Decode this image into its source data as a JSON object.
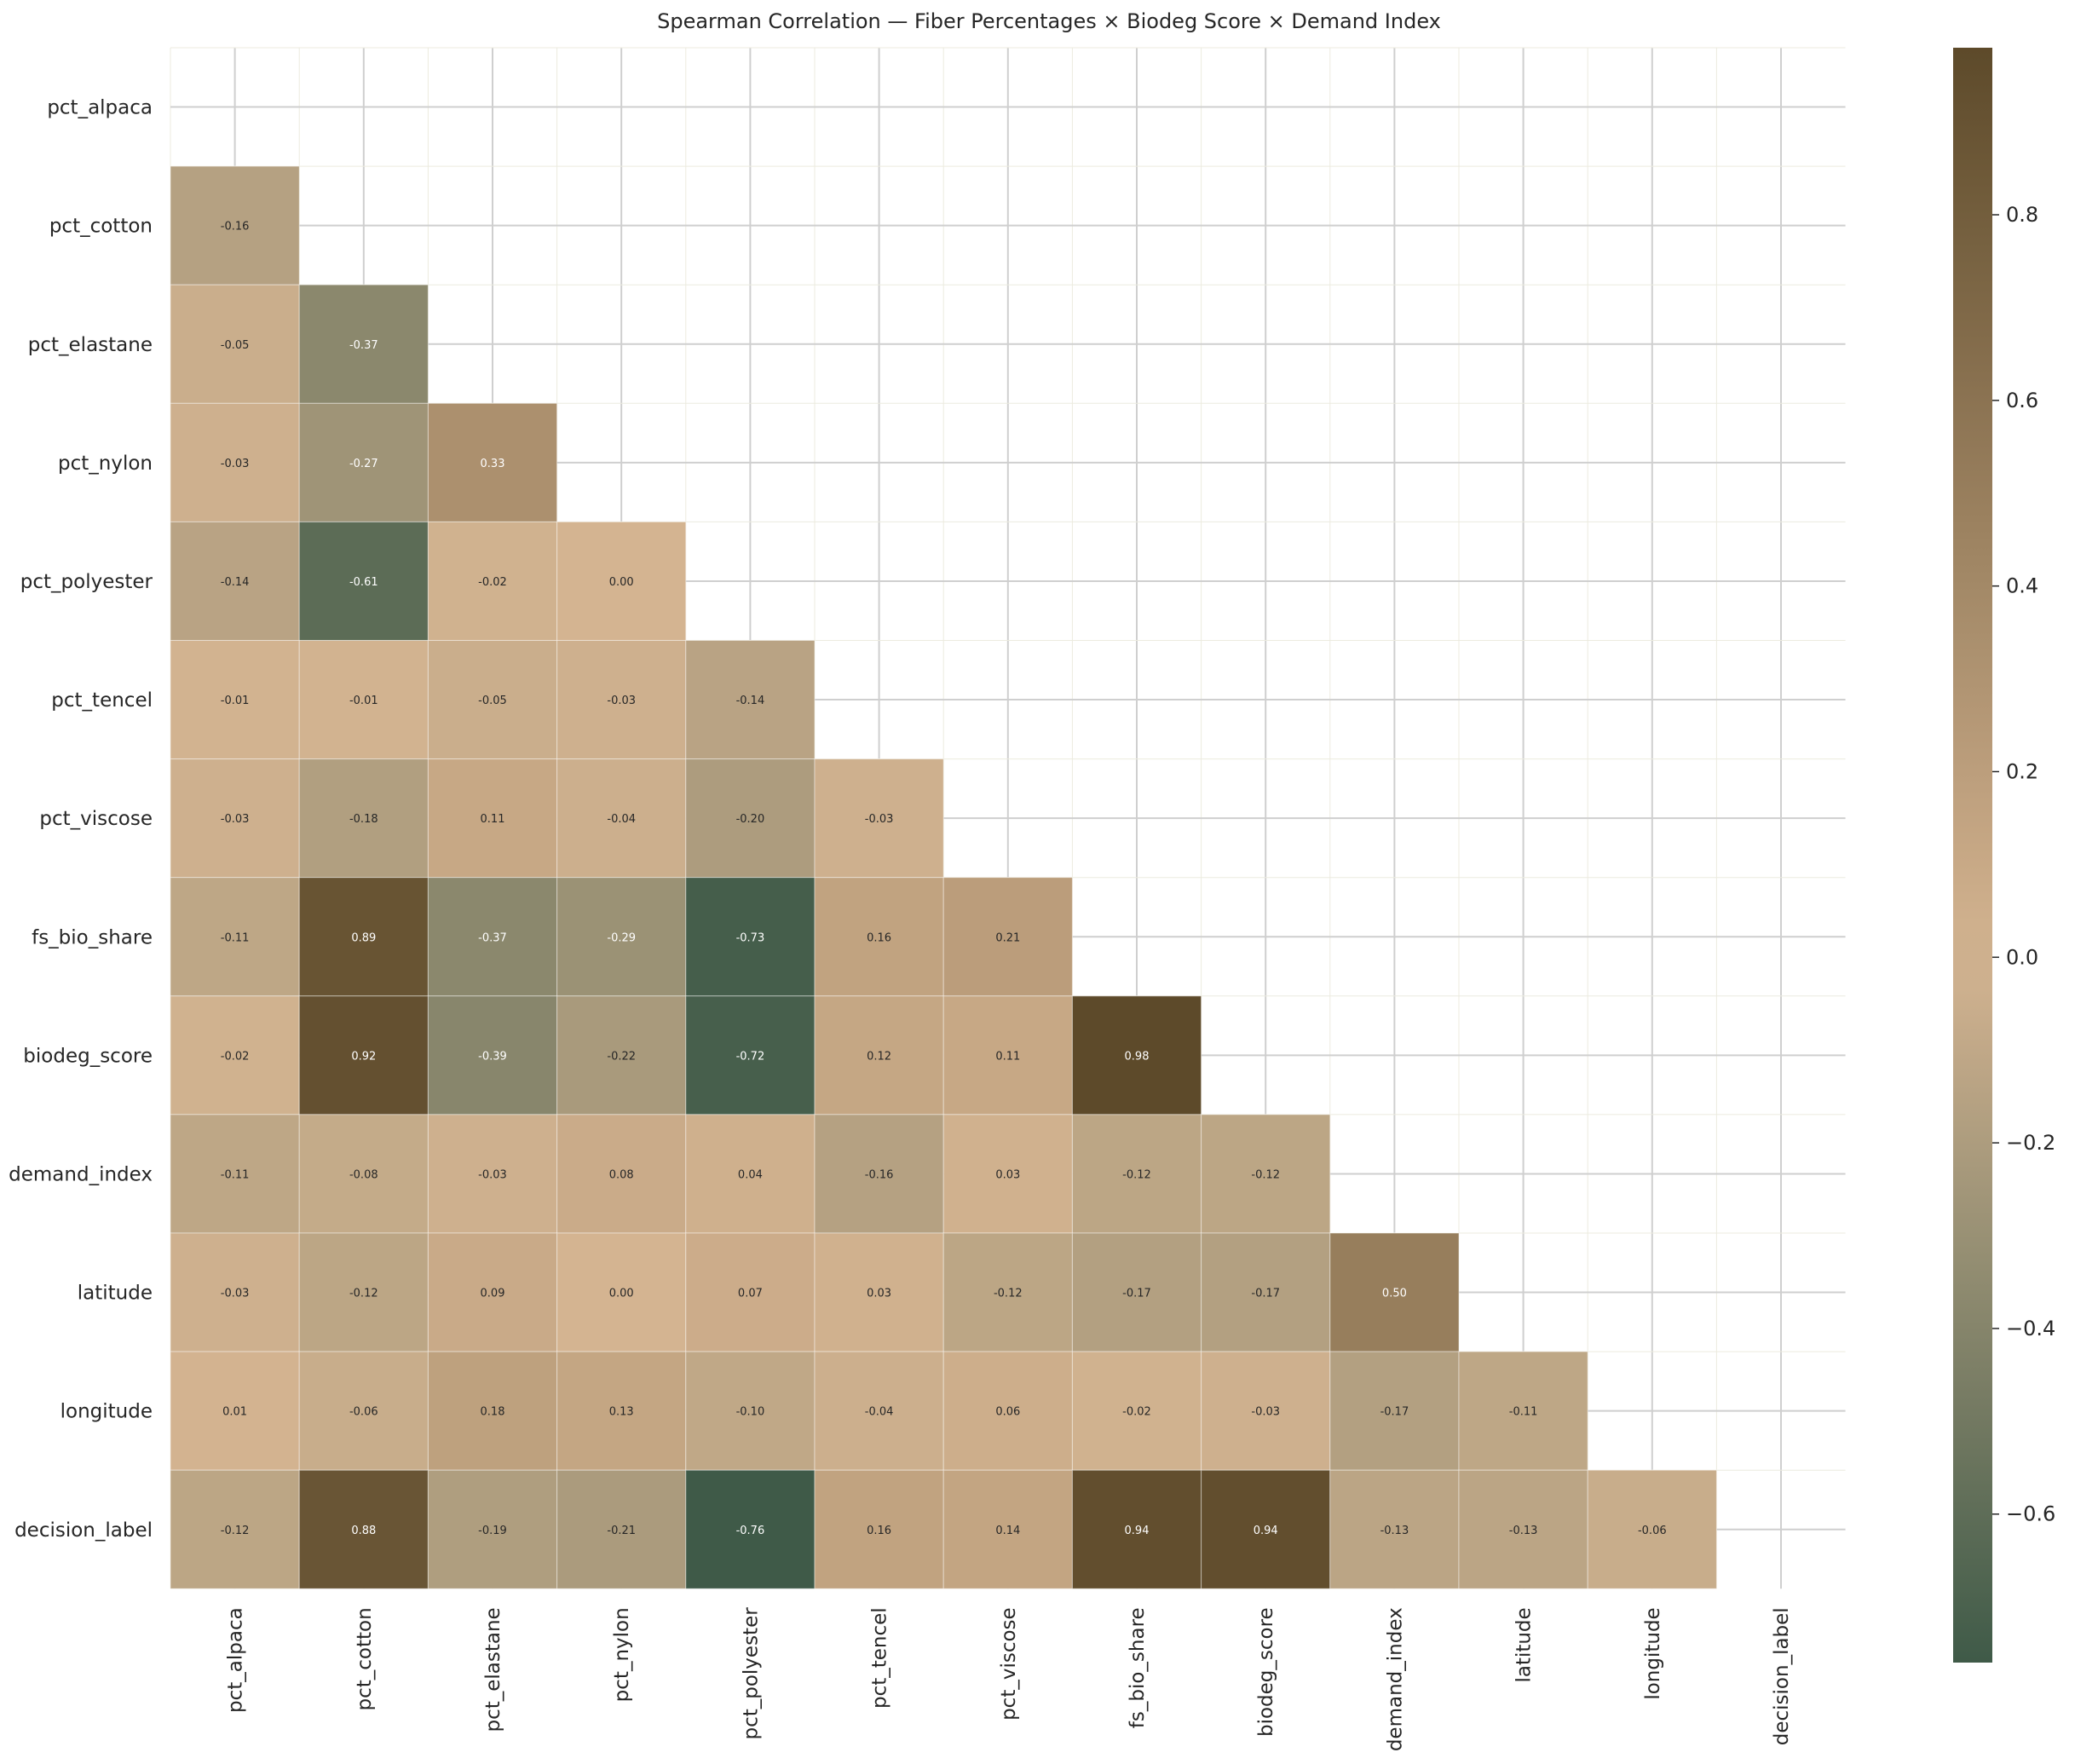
{
  "chart_data": {
    "type": "heatmap",
    "title": "Spearman Correlation — Fiber Percentages × Biodeg Score × Demand Index",
    "rows": [
      "pct_alpaca",
      "pct_cotton",
      "pct_elastane",
      "pct_nylon",
      "pct_polyester",
      "pct_tencel",
      "pct_viscose",
      "fs_bio_share",
      "biodeg_score",
      "demand_index",
      "latitude",
      "longitude",
      "decision_label"
    ],
    "columns": [
      "pct_alpaca",
      "pct_cotton",
      "pct_elastane",
      "pct_nylon",
      "pct_polyester",
      "pct_tencel",
      "pct_viscose",
      "fs_bio_share",
      "biodeg_score",
      "demand_index",
      "latitude",
      "longitude",
      "decision_label"
    ],
    "mask": "upper-triangle-and-diagonal",
    "values": [
      [
        null,
        null,
        null,
        null,
        null,
        null,
        null,
        null,
        null,
        null,
        null,
        null,
        null
      ],
      [
        -0.16,
        null,
        null,
        null,
        null,
        null,
        null,
        null,
        null,
        null,
        null,
        null,
        null
      ],
      [
        -0.05,
        -0.37,
        null,
        null,
        null,
        null,
        null,
        null,
        null,
        null,
        null,
        null,
        null
      ],
      [
        -0.03,
        -0.27,
        0.33,
        null,
        null,
        null,
        null,
        null,
        null,
        null,
        null,
        null,
        null
      ],
      [
        -0.14,
        -0.61,
        -0.02,
        0.0,
        null,
        null,
        null,
        null,
        null,
        null,
        null,
        null,
        null
      ],
      [
        -0.01,
        -0.01,
        -0.05,
        -0.03,
        -0.14,
        null,
        null,
        null,
        null,
        null,
        null,
        null,
        null
      ],
      [
        -0.03,
        -0.18,
        0.11,
        -0.04,
        -0.2,
        -0.03,
        null,
        null,
        null,
        null,
        null,
        null,
        null
      ],
      [
        -0.11,
        0.89,
        -0.37,
        -0.29,
        -0.73,
        0.16,
        0.21,
        null,
        null,
        null,
        null,
        null,
        null
      ],
      [
        -0.02,
        0.92,
        -0.39,
        -0.22,
        -0.72,
        0.12,
        0.11,
        0.98,
        null,
        null,
        null,
        null,
        null
      ],
      [
        -0.11,
        -0.08,
        -0.03,
        0.08,
        0.04,
        -0.16,
        0.03,
        -0.12,
        -0.12,
        null,
        null,
        null,
        null
      ],
      [
        -0.03,
        -0.12,
        0.09,
        0.0,
        0.07,
        0.03,
        -0.12,
        -0.17,
        -0.17,
        0.5,
        null,
        null,
        null
      ],
      [
        0.01,
        -0.06,
        0.18,
        0.13,
        -0.1,
        -0.04,
        0.06,
        -0.02,
        -0.03,
        -0.17,
        -0.11,
        null,
        null
      ],
      [
        -0.12,
        0.88,
        -0.19,
        -0.21,
        -0.76,
        0.16,
        0.14,
        0.94,
        0.94,
        -0.13,
        -0.13,
        -0.06,
        null
      ]
    ],
    "annotation_format": "0.00",
    "colorbar": {
      "vmin": -0.76,
      "vmax": 0.98,
      "center": 0.0,
      "ticks": [
        -0.6,
        -0.4,
        -0.2,
        0.0,
        0.2,
        0.4,
        0.6,
        0.8
      ],
      "tick_labels": [
        "−0.6",
        "−0.4",
        "−0.2",
        "0.0",
        "0.2",
        "0.4",
        "0.6",
        "0.8"
      ],
      "colors": {
        "low": "#3f5a48",
        "center": "#d4b491",
        "high": "#5d4a2a"
      }
    },
    "grid": true,
    "colorbar_position": "right"
  }
}
